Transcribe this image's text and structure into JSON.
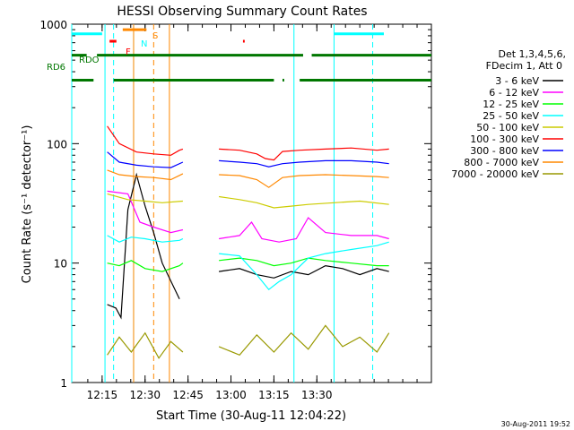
{
  "chart_data": {
    "type": "line",
    "title": "HESSI Observing Summary Count Rates",
    "xlabel": "Start Time (30-Aug-11 12:04:22)",
    "ylabel": "Count Rate (s⁻¹ detector⁻¹)",
    "yscale": "log",
    "ylim": [
      1,
      1000
    ],
    "xlim_min": [
      12.0732,
      14.1667
    ],
    "x_unit": "hours (UT)",
    "x_ticks": [
      "12:15",
      "12:30",
      "12:45",
      "13:00",
      "13:15",
      "13:30"
    ],
    "y_ticks": [
      "1",
      "10",
      "100",
      "1000"
    ],
    "legend": {
      "placement": "right",
      "header": [
        "Det 1,3,4,5,6,",
        "FDecim 1, Att 0"
      ]
    },
    "series": [
      {
        "name": "3 - 6 keV",
        "color": "#000000",
        "segments": [
          [
            [
              12.28,
              4.5
            ],
            [
              12.33,
              4.2
            ],
            [
              12.36,
              3.5
            ],
            [
              12.4,
              28
            ],
            [
              12.45,
              55
            ],
            [
              12.5,
              30
            ],
            [
              12.55,
              18
            ],
            [
              12.6,
              10
            ],
            [
              12.7,
              5
            ]
          ],
          [
            [
              12.93,
              8.5
            ],
            [
              13.05,
              9
            ],
            [
              13.15,
              8
            ],
            [
              13.25,
              7.5
            ],
            [
              13.35,
              8.5
            ],
            [
              13.45,
              8
            ],
            [
              13.55,
              9.5
            ],
            [
              13.65,
              9
            ],
            [
              13.75,
              8
            ],
            [
              13.85,
              9
            ],
            [
              13.92,
              8.5
            ]
          ]
        ]
      },
      {
        "name": "6 - 12 keV",
        "color": "#ff00ff",
        "segments": [
          [
            [
              12.28,
              40
            ],
            [
              12.4,
              38
            ],
            [
              12.47,
              22
            ],
            [
              12.55,
              20
            ],
            [
              12.65,
              18
            ],
            [
              12.72,
              19
            ]
          ],
          [
            [
              12.93,
              16
            ],
            [
              13.05,
              17
            ],
            [
              13.12,
              22
            ],
            [
              13.18,
              16
            ],
            [
              13.28,
              15
            ],
            [
              13.38,
              16
            ],
            [
              13.45,
              24
            ],
            [
              13.55,
              18
            ],
            [
              13.7,
              17
            ],
            [
              13.85,
              17
            ],
            [
              13.92,
              16
            ]
          ]
        ]
      },
      {
        "name": "12 - 25 keV",
        "color": "#00ff00",
        "segments": [
          [
            [
              12.28,
              10
            ],
            [
              12.35,
              9.5
            ],
            [
              12.42,
              10.5
            ],
            [
              12.5,
              9
            ],
            [
              12.6,
              8.5
            ],
            [
              12.7,
              9.5
            ],
            [
              12.72,
              10
            ]
          ],
          [
            [
              12.93,
              10.5
            ],
            [
              13.05,
              11
            ],
            [
              13.15,
              10.5
            ],
            [
              13.25,
              9.5
            ],
            [
              13.35,
              10
            ],
            [
              13.45,
              11
            ],
            [
              13.55,
              10.5
            ],
            [
              13.7,
              10
            ],
            [
              13.85,
              9.5
            ],
            [
              13.92,
              9.5
            ]
          ]
        ]
      },
      {
        "name": "25 - 50 keV",
        "color": "#00ffff",
        "segments": [
          [
            [
              12.28,
              17
            ],
            [
              12.35,
              15
            ],
            [
              12.42,
              16.5
            ],
            [
              12.5,
              16
            ],
            [
              12.6,
              15
            ],
            [
              12.7,
              15.5
            ],
            [
              12.72,
              16
            ]
          ],
          [
            [
              12.93,
              12
            ],
            [
              13.05,
              11.5
            ],
            [
              13.15,
              8
            ],
            [
              13.22,
              6
            ],
            [
              13.28,
              7
            ],
            [
              13.35,
              8
            ],
            [
              13.45,
              11
            ],
            [
              13.55,
              12
            ],
            [
              13.7,
              13
            ],
            [
              13.85,
              14
            ],
            [
              13.92,
              15
            ]
          ]
        ]
      },
      {
        "name": "50 - 100 keV",
        "color": "#cccc00",
        "segments": [
          [
            [
              12.28,
              38
            ],
            [
              12.4,
              34
            ],
            [
              12.5,
              33
            ],
            [
              12.6,
              32
            ],
            [
              12.72,
              33
            ]
          ],
          [
            [
              12.93,
              36
            ],
            [
              13.05,
              34
            ],
            [
              13.15,
              32
            ],
            [
              13.25,
              29
            ],
            [
              13.35,
              30
            ],
            [
              13.45,
              31
            ],
            [
              13.6,
              32
            ],
            [
              13.75,
              33
            ],
            [
              13.92,
              31
            ]
          ]
        ]
      },
      {
        "name": "100 - 300 keV",
        "color": "#ff0000",
        "segments": [
          [
            [
              12.28,
              140
            ],
            [
              12.35,
              100
            ],
            [
              12.45,
              85
            ],
            [
              12.55,
              82
            ],
            [
              12.65,
              80
            ],
            [
              12.7,
              88
            ],
            [
              12.72,
              90
            ]
          ],
          [
            [
              12.93,
              90
            ],
            [
              13.05,
              88
            ],
            [
              13.15,
              82
            ],
            [
              13.2,
              75
            ],
            [
              13.25,
              73
            ],
            [
              13.3,
              86
            ],
            [
              13.4,
              88
            ],
            [
              13.55,
              90
            ],
            [
              13.7,
              92
            ],
            [
              13.85,
              88
            ],
            [
              13.92,
              90
            ]
          ]
        ]
      },
      {
        "name": "300 - 800 keV",
        "color": "#0000ff",
        "segments": [
          [
            [
              12.28,
              85
            ],
            [
              12.35,
              70
            ],
            [
              12.45,
              66
            ],
            [
              12.55,
              64
            ],
            [
              12.65,
              63
            ],
            [
              12.72,
              70
            ]
          ],
          [
            [
              12.93,
              72
            ],
            [
              13.05,
              70
            ],
            [
              13.15,
              68
            ],
            [
              13.22,
              64
            ],
            [
              13.3,
              68
            ],
            [
              13.4,
              70
            ],
            [
              13.55,
              72
            ],
            [
              13.7,
              72
            ],
            [
              13.85,
              70
            ],
            [
              13.92,
              68
            ]
          ]
        ]
      },
      {
        "name": "800 - 7000 keV",
        "color": "#ff8800",
        "segments": [
          [
            [
              12.28,
              60
            ],
            [
              12.35,
              55
            ],
            [
              12.45,
              53
            ],
            [
              12.55,
              52
            ],
            [
              12.65,
              50
            ],
            [
              12.72,
              56
            ]
          ],
          [
            [
              12.93,
              55
            ],
            [
              13.05,
              54
            ],
            [
              13.15,
              50
            ],
            [
              13.22,
              43
            ],
            [
              13.3,
              52
            ],
            [
              13.4,
              54
            ],
            [
              13.55,
              55
            ],
            [
              13.7,
              54
            ],
            [
              13.85,
              53
            ],
            [
              13.92,
              52
            ]
          ]
        ]
      },
      {
        "name": "7000 - 20000 keV",
        "color": "#999900",
        "segments": [
          [
            [
              12.28,
              1.7
            ],
            [
              12.35,
              2.4
            ],
            [
              12.42,
              1.8
            ],
            [
              12.5,
              2.6
            ],
            [
              12.58,
              1.6
            ],
            [
              12.65,
              2.2
            ],
            [
              12.72,
              1.8
            ]
          ],
          [
            [
              12.93,
              2.0
            ],
            [
              13.05,
              1.7
            ],
            [
              13.15,
              2.5
            ],
            [
              13.25,
              1.8
            ],
            [
              13.35,
              2.6
            ],
            [
              13.45,
              1.9
            ],
            [
              13.55,
              3.0
            ],
            [
              13.65,
              2.0
            ],
            [
              13.75,
              2.4
            ],
            [
              13.85,
              1.8
            ],
            [
              13.92,
              2.6
            ]
          ]
        ]
      }
    ],
    "vertical_markers": [
      {
        "x": 12.0732,
        "color": "#00ffff",
        "style": "solid"
      },
      {
        "x": 12.2667,
        "color": "#00ffff",
        "style": "solid"
      },
      {
        "x": 12.3167,
        "color": "#00ffff",
        "style": "dashed"
      },
      {
        "x": 12.4333,
        "color": "#00ffff",
        "style": "solid"
      },
      {
        "x": 12.4333,
        "color": "#ff8800",
        "style": "solid"
      },
      {
        "x": 12.55,
        "color": "#ff8800",
        "style": "dashed"
      },
      {
        "x": 12.6417,
        "color": "#ff8800",
        "style": "solid"
      },
      {
        "x": 13.3667,
        "color": "#00ffff",
        "style": "solid"
      },
      {
        "x": 13.6,
        "color": "#00ffff",
        "style": "solid"
      },
      {
        "x": 13.825,
        "color": "#00ffff",
        "style": "dashed"
      }
    ],
    "flag_bars": [
      {
        "label": "RD6",
        "color": "#007700",
        "y": 340,
        "segments": [
          [
            12.0732,
            12.2
          ],
          [
            12.3167,
            13.25
          ],
          [
            13.3,
            13.31
          ],
          [
            13.4,
            14.1667
          ]
        ]
      },
      {
        "label": "RDO",
        "color": "#007700",
        "y": 550,
        "segments": [
          [
            12.0732,
            12.16
          ],
          [
            12.22,
            13.42
          ],
          [
            13.47,
            14.1667
          ]
        ]
      },
      {
        "label": "F",
        "color": "#ff0000",
        "y": 720,
        "segments": [
          [
            12.2933,
            12.3333
          ],
          [
            13.07,
            13.08
          ]
        ]
      },
      {
        "label": "N",
        "color": "#00ffff",
        "y": 830,
        "segments": [
          [
            12.0732,
            12.25
          ],
          [
            13.6,
            13.89
          ]
        ]
      },
      {
        "label": "S",
        "color": "#ff8800",
        "y": 900,
        "segments": [
          [
            12.37,
            12.5083
          ]
        ]
      }
    ],
    "flag_labels": {
      "rd6": "RD6",
      "rdo": "RDO",
      "f": "F",
      "n": "N",
      "s": "S"
    },
    "date_stamp": "30-Aug-2011 19:52"
  }
}
